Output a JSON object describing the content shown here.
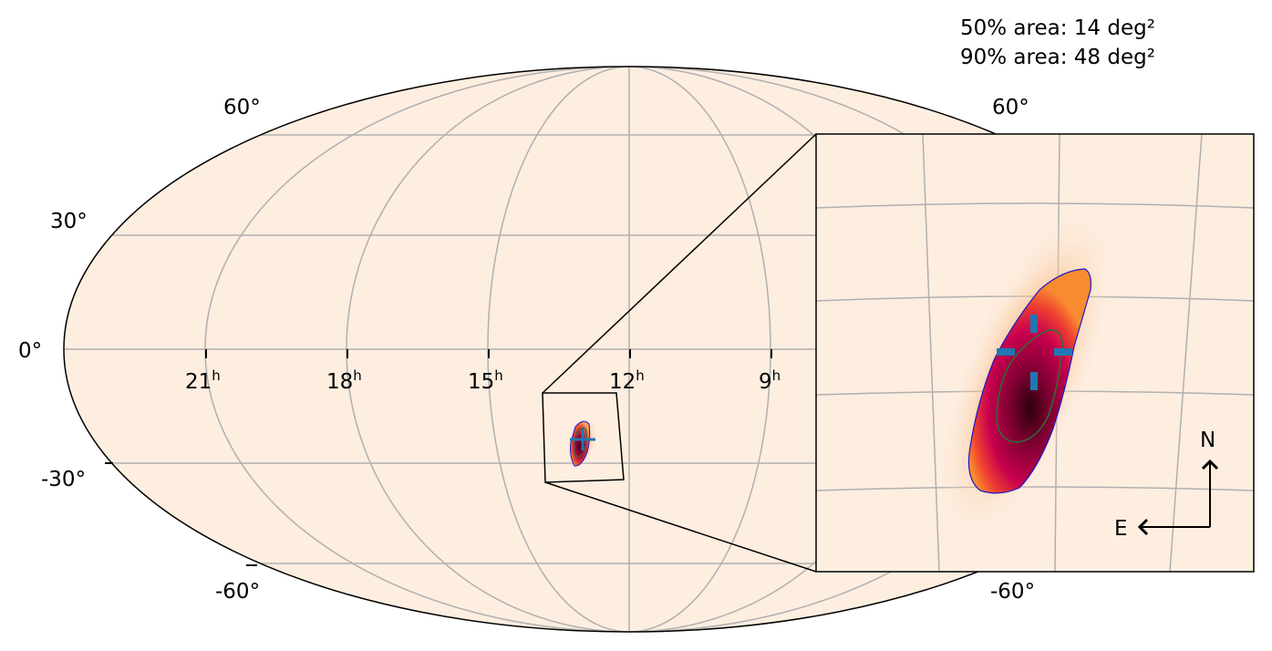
{
  "chart_data": [
    {
      "type": "heatmap",
      "panel": "all-sky",
      "projection": "mollweide",
      "ra_tick_labels": [
        "21",
        "18",
        "15",
        "12",
        "9"
      ],
      "ra_unit": "h",
      "dec_tick_labels": [
        "60°",
        "30°",
        "0°",
        "-30°",
        "-60°"
      ],
      "grid": true,
      "ra_range": [
        0,
        24
      ],
      "dec_range": [
        -90,
        90
      ],
      "peak": {
        "ra_h": 13.0,
        "dec_deg": -27
      },
      "colors": {
        "background": "#fdeee0",
        "peak": "#3a0010",
        "mid": "#b0004a",
        "outer": "#f2722e",
        "contour_50": "#2c6e3a",
        "contour_90": "#1a1acc",
        "marker": "#1f77b4",
        "grid": "#b0b0b0"
      }
    },
    {
      "type": "heatmap",
      "panel": "zoom-inset",
      "grid": true,
      "orientation": {
        "north": "N",
        "east": "E"
      },
      "area_50": "50% area: 14 deg²",
      "area_90": "90% area: 48 deg²",
      "inset_corner_labels": [
        "60°",
        "-60°"
      ]
    }
  ]
}
